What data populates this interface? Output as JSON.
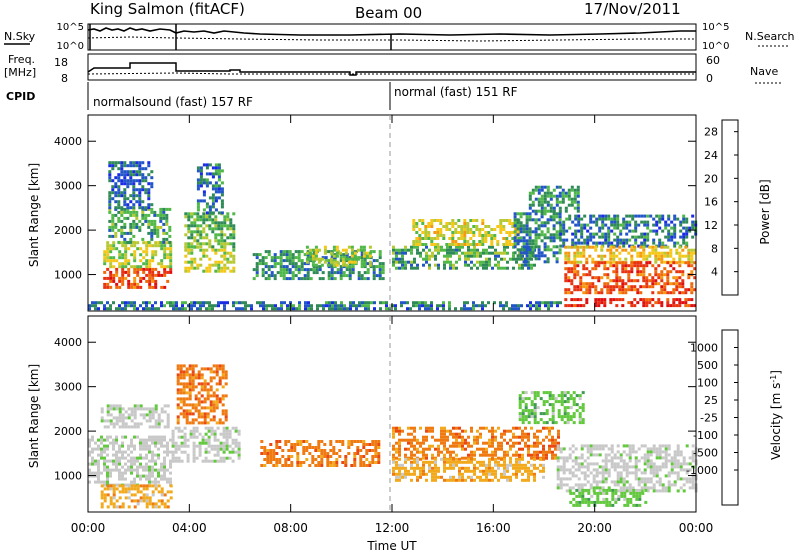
{
  "header": {
    "station": "King Salmon (fitACF)",
    "beam": "Beam 00",
    "date": "17/Nov/2011"
  },
  "top_panel": {
    "nsky_label": "N.Sky",
    "nsearch_label": "N.Search",
    "left_ticks": [
      "10^5",
      "10^0"
    ],
    "right_ticks": [
      "10^5",
      "10^0"
    ]
  },
  "freq_panel": {
    "freq_label_line1": "Freq.",
    "freq_label_line2": "[MHz]",
    "nave_label": "Nave",
    "left_ticks": [
      "18",
      "8"
    ],
    "right_ticks": [
      "60",
      "0"
    ]
  },
  "cpid": {
    "label": "CPID",
    "segments": [
      "normalsound (fast) 157 RF",
      "normal (fast) 151 RF"
    ]
  },
  "chart_data": [
    {
      "type": "heatmap",
      "name": "power",
      "ylabel": "Slant Range [km]",
      "ylim": [
        180,
        4590
      ],
      "yticks": [
        "1000",
        "2000",
        "3000",
        "4000"
      ],
      "colorbar_label": "Power [dB]",
      "colorbar_ticks": [
        "4",
        "8",
        "12",
        "16",
        "20",
        "24",
        "28"
      ],
      "colorbar_range": [
        0,
        30
      ],
      "colors": [
        "#1a2be6",
        "#2255c8",
        "#2f8a58",
        "#4fb848",
        "#b6c832",
        "#f5c818",
        "#f59a10",
        "#f06a0a",
        "#e83210",
        "#e00f0f"
      ],
      "regions": [
        {
          "t0": 0.6,
          "t1": 3.3,
          "r0": 680,
          "r1": 1150,
          "v": 24
        },
        {
          "t0": 0.6,
          "t1": 3.3,
          "r0": 1150,
          "r1": 1750,
          "v": 13
        },
        {
          "t0": 0.8,
          "t1": 3.2,
          "r0": 1750,
          "r1": 2500,
          "v": 9
        },
        {
          "t0": 0.8,
          "t1": 2.5,
          "r0": 2500,
          "r1": 3550,
          "v": 5
        },
        {
          "t0": 3.8,
          "t1": 5.7,
          "r0": 1100,
          "r1": 1650,
          "v": 14
        },
        {
          "t0": 3.8,
          "t1": 5.7,
          "r0": 1650,
          "r1": 2400,
          "v": 10
        },
        {
          "t0": 4.3,
          "t1": 5.3,
          "r0": 2400,
          "r1": 3500,
          "v": 6
        },
        {
          "t0": 6.5,
          "t1": 11.6,
          "r0": 900,
          "r1": 1550,
          "v": 8
        },
        {
          "t0": 8.6,
          "t1": 11.2,
          "r0": 1200,
          "r1": 1650,
          "v": 13
        },
        {
          "t0": 12.0,
          "t1": 17.6,
          "r0": 1150,
          "r1": 1650,
          "v": 9
        },
        {
          "t0": 12.8,
          "t1": 17.0,
          "r0": 1650,
          "r1": 2250,
          "v": 15
        },
        {
          "t0": 16.8,
          "t1": 18.6,
          "r0": 1300,
          "r1": 2400,
          "v": 7
        },
        {
          "t0": 17.4,
          "t1": 19.4,
          "r0": 2400,
          "r1": 3000,
          "v": 8
        },
        {
          "t0": 18.6,
          "t1": 24.0,
          "r0": 1650,
          "r1": 2350,
          "v": 6
        },
        {
          "t0": 18.8,
          "t1": 24.0,
          "r0": 1300,
          "r1": 1650,
          "v": 17
        },
        {
          "t0": 18.8,
          "t1": 24.0,
          "r0": 620,
          "r1": 1300,
          "v": 24
        },
        {
          "t0": 18.8,
          "t1": 24.0,
          "r0": 330,
          "r1": 470,
          "v": 27
        },
        {
          "t0": 0.0,
          "t1": 18.6,
          "r0": 200,
          "r1": 400,
          "v": 6
        }
      ]
    },
    {
      "type": "heatmap",
      "name": "velocity",
      "ylabel": "Slant Range [km]",
      "ylim": [
        180,
        4590
      ],
      "yticks": [
        "1000",
        "2000",
        "3000",
        "4000"
      ],
      "xlabel": "Time UT",
      "xticks": [
        "00:00",
        "04:00",
        "08:00",
        "12:00",
        "16:00",
        "20:00",
        "00:00"
      ],
      "xlim": [
        0,
        24
      ],
      "colorbar_label": "Velocity [m s^-1]",
      "colorbar_ticks": [
        "1000",
        "500",
        "100",
        "25",
        "-25",
        "-100",
        "-500",
        "-1000"
      ],
      "colors": [
        "#1e3cc8",
        "#3a72b4",
        "#3f9a52",
        "#62c83c",
        "#c8c8c8",
        "#c8c8c8",
        "#f2aa1c",
        "#f07a12",
        "#ea4810",
        "#e20f0f"
      ],
      "regions": [
        {
          "t0": 0.0,
          "t1": 3.3,
          "r0": 800,
          "r1": 1900,
          "c": 4
        },
        {
          "t0": 0.5,
          "t1": 3.2,
          "r0": 2100,
          "r1": 2600,
          "c": 4
        },
        {
          "t0": 0.5,
          "t1": 3.3,
          "r0": 300,
          "r1": 800,
          "c": 6
        },
        {
          "t0": 3.3,
          "t1": 6.0,
          "r0": 1300,
          "r1": 2100,
          "c": 4
        },
        {
          "t0": 3.5,
          "t1": 5.5,
          "r0": 2200,
          "r1": 3500,
          "c": 7
        },
        {
          "t0": 6.8,
          "t1": 11.5,
          "r0": 1200,
          "r1": 1800,
          "c": 7
        },
        {
          "t0": 12.0,
          "t1": 18.6,
          "r0": 1400,
          "r1": 2100,
          "c": 7
        },
        {
          "t0": 12.0,
          "t1": 18.0,
          "r0": 900,
          "r1": 1400,
          "c": 6
        },
        {
          "t0": 17.0,
          "t1": 19.5,
          "r0": 2200,
          "r1": 2900,
          "c": 3
        },
        {
          "t0": 18.5,
          "t1": 24.0,
          "r0": 650,
          "r1": 1700,
          "c": 4
        },
        {
          "t0": 19.0,
          "t1": 22.0,
          "r0": 300,
          "r1": 700,
          "c": 3
        }
      ]
    }
  ]
}
